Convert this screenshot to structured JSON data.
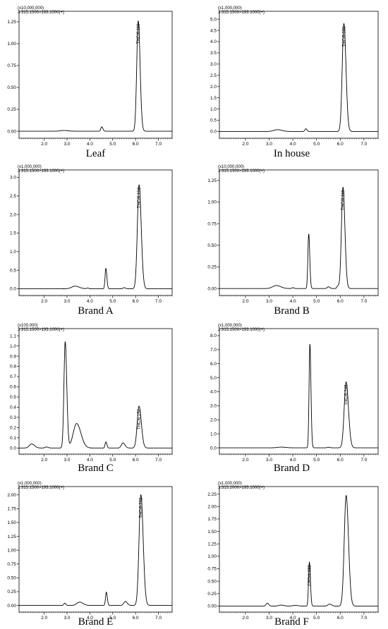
{
  "chart_data": [
    {
      "type": "line",
      "caption": "Leaf",
      "multiplier": "(x10,000,000)",
      "transition": "3:315.1500>193.1000(+)",
      "xlim": [
        0.9,
        7.6
      ],
      "ylim": [
        -0.08,
        1.37
      ],
      "x_ticks": [
        2.0,
        3.0,
        4.0,
        5.0,
        6.0,
        7.0
      ],
      "x_tick_labels": [
        "2.0",
        "3.0",
        "4.0",
        "5.0",
        "6.0",
        "7.0"
      ],
      "y_ticks": [
        0.0,
        0.25,
        0.5,
        0.75,
        1.0,
        1.25
      ],
      "y_tick_labels": [
        "0.00",
        "0.25",
        "0.50",
        "0.75",
        "1.00",
        "1.25"
      ],
      "peaks": [
        {
          "x": 2.85,
          "height": 0.008,
          "width": 0.15
        },
        {
          "x": 4.52,
          "height": 0.05,
          "width": 0.04
        },
        {
          "x": 6.116,
          "height": 1.26,
          "width": 0.065
        }
      ],
      "labels": [
        {
          "x": 6.116,
          "text": "THC/6.116"
        }
      ]
    },
    {
      "type": "line",
      "caption": "In house",
      "multiplier": "(x1,000,000)",
      "transition": "3:315.1500>193.1000(+)",
      "xlim": [
        0.9,
        7.6
      ],
      "ylim": [
        -0.3,
        5.35
      ],
      "x_ticks": [
        2.0,
        3.0,
        4.0,
        5.0,
        6.0,
        7.0
      ],
      "x_tick_labels": [
        "2.0",
        "3.0",
        "4.0",
        "5.0",
        "6.0",
        "7.0"
      ],
      "y_ticks": [
        0.0,
        0.5,
        1.0,
        1.5,
        2.0,
        2.5,
        3.0,
        3.5,
        4.0,
        4.5,
        5.0
      ],
      "y_tick_labels": [
        "0.0",
        "0.5",
        "1.0",
        "1.5",
        "2.0",
        "2.5",
        "3.0",
        "3.5",
        "4.0",
        "4.5",
        "5.0"
      ],
      "peaks": [
        {
          "x": 3.35,
          "height": 0.08,
          "width": 0.15
        },
        {
          "x": 4.55,
          "height": 0.12,
          "width": 0.04
        },
        {
          "x": 6.155,
          "height": 4.8,
          "width": 0.07
        }
      ],
      "labels": [
        {
          "x": 6.155,
          "text": "THC/6.155"
        }
      ]
    },
    {
      "type": "line",
      "caption": "Brand A",
      "multiplier": "(x1,000,000)",
      "transition": "3:315.1500>193.1000(+)",
      "xlim": [
        0.9,
        7.6
      ],
      "ylim": [
        -0.18,
        3.2
      ],
      "x_ticks": [
        2.0,
        3.0,
        4.0,
        5.0,
        6.0,
        7.0
      ],
      "x_tick_labels": [
        "2.0",
        "3.0",
        "4.0",
        "5.0",
        "6.0",
        "7.0"
      ],
      "y_ticks": [
        0.0,
        0.5,
        1.0,
        1.5,
        2.0,
        2.5,
        3.0
      ],
      "y_tick_labels": [
        "0.0",
        "0.5",
        "1.0",
        "1.5",
        "2.0",
        "2.5",
        "3.0"
      ],
      "peaks": [
        {
          "x": 3.35,
          "height": 0.07,
          "width": 0.15
        },
        {
          "x": 3.9,
          "height": 0.02,
          "width": 0.04
        },
        {
          "x": 4.7,
          "height": 0.55,
          "width": 0.035
        },
        {
          "x": 5.5,
          "height": 0.03,
          "width": 0.05
        },
        {
          "x": 6.153,
          "height": 2.8,
          "width": 0.075
        }
      ],
      "labels": [
        {
          "x": 6.153,
          "text": "THC/6.153"
        }
      ]
    },
    {
      "type": "line",
      "caption": "Brand B",
      "multiplier": "(x10,000,000)",
      "transition": "3:315.1500>193.1000(+)",
      "xlim": [
        0.9,
        7.6
      ],
      "ylim": [
        -0.08,
        1.37
      ],
      "x_ticks": [
        2.0,
        3.0,
        4.0,
        5.0,
        6.0,
        7.0
      ],
      "x_tick_labels": [
        "2.0",
        "3.0",
        "4.0",
        "5.0",
        "6.0",
        "7.0"
      ],
      "y_ticks": [
        0.0,
        0.25,
        0.5,
        0.75,
        1.0,
        1.25
      ],
      "y_tick_labels": [
        "0.00",
        "0.25",
        "0.50",
        "0.75",
        "1.00",
        "1.25"
      ],
      "peaks": [
        {
          "x": 3.3,
          "height": 0.035,
          "width": 0.15
        },
        {
          "x": 4.0,
          "height": 0.01,
          "width": 0.04
        },
        {
          "x": 4.67,
          "height": 0.63,
          "width": 0.035
        },
        {
          "x": 5.5,
          "height": 0.02,
          "width": 0.05
        },
        {
          "x": 5.9,
          "height": 0.03,
          "width": 0.04
        },
        {
          "x": 6.116,
          "height": 1.17,
          "width": 0.065
        }
      ],
      "labels": [
        {
          "x": 6.116,
          "text": "THC/6.116"
        }
      ]
    },
    {
      "type": "line",
      "caption": "Brand C",
      "multiplier": "(x100,000)",
      "transition": "3:315.1500>193.1000(+)",
      "xlim": [
        0.9,
        7.6
      ],
      "ylim": [
        -0.06,
        1.17
      ],
      "x_ticks": [
        2.0,
        3.0,
        4.0,
        5.0,
        6.0,
        7.0
      ],
      "x_tick_labels": [
        "2.0",
        "3.0",
        "4.0",
        "5.0",
        "6.0",
        "7.0"
      ],
      "y_ticks": [
        0.0,
        0.1,
        0.2,
        0.3,
        0.4,
        0.5,
        0.6,
        0.7,
        0.8,
        0.9,
        1.0,
        1.1
      ],
      "y_tick_labels": [
        "0.0",
        "0.1",
        "0.2",
        "0.3",
        "0.4",
        "0.5",
        "0.6",
        "0.7",
        "0.8",
        "0.9",
        "1.0",
        "1.1"
      ],
      "peaks": [
        {
          "x": 1.45,
          "height": 0.04,
          "width": 0.1
        },
        {
          "x": 2.1,
          "height": 0.01,
          "width": 0.06
        },
        {
          "x": 2.92,
          "height": 1.04,
          "width": 0.055
        },
        {
          "x": 3.42,
          "height": 0.24,
          "width": 0.15
        },
        {
          "x": 4.7,
          "height": 0.06,
          "width": 0.035
        },
        {
          "x": 5.45,
          "height": 0.05,
          "width": 0.07
        },
        {
          "x": 6.152,
          "height": 0.41,
          "width": 0.08
        }
      ],
      "labels": [
        {
          "x": 6.152,
          "text": "THC/6.152"
        }
      ]
    },
    {
      "type": "line",
      "caption": "Brand D",
      "multiplier": "(x1,000,000)",
      "transition": "2:315.1500>193.1000(+)",
      "xlim": [
        0.9,
        7.6
      ],
      "ylim": [
        -0.45,
        8.5
      ],
      "x_ticks": [
        2.0,
        3.0,
        4.0,
        5.0,
        6.0,
        7.0
      ],
      "x_tick_labels": [
        "2.0",
        "3.0",
        "4.0",
        "5.0",
        "6.0",
        "7.0"
      ],
      "y_ticks": [
        0.0,
        1.0,
        2.0,
        3.0,
        4.0,
        5.0,
        6.0,
        7.0,
        8.0
      ],
      "y_tick_labels": [
        "0.0",
        "1.0",
        "2.0",
        "3.0",
        "4.0",
        "5.0",
        "6.0",
        "7.0",
        "8.0"
      ],
      "peaks": [
        {
          "x": 3.5,
          "height": 0.05,
          "width": 0.15
        },
        {
          "x": 4.72,
          "height": 7.4,
          "width": 0.035
        },
        {
          "x": 5.5,
          "height": 0.04,
          "width": 0.05
        },
        {
          "x": 6.248,
          "height": 4.7,
          "width": 0.08
        }
      ],
      "labels": [
        {
          "x": 6.248,
          "text": "THC/6.248"
        }
      ]
    },
    {
      "type": "line",
      "caption": "Brand E",
      "multiplier": "(x1,000,000)",
      "transition": "2:315.1500>193.1000(+)",
      "xlim": [
        0.9,
        7.6
      ],
      "ylim": [
        -0.12,
        2.15
      ],
      "x_ticks": [
        2.0,
        3.0,
        4.0,
        5.0,
        6.0,
        7.0
      ],
      "x_tick_labels": [
        "2.0",
        "3.0",
        "4.0",
        "5.0",
        "6.0",
        "7.0"
      ],
      "y_ticks": [
        0.0,
        0.25,
        0.5,
        0.75,
        1.0,
        1.25,
        1.5,
        1.75,
        2.0
      ],
      "y_tick_labels": [
        "0.00",
        "0.25",
        "0.50",
        "0.75",
        "1.00",
        "1.25",
        "1.50",
        "1.75",
        "2.00"
      ],
      "peaks": [
        {
          "x": 2.9,
          "height": 0.04,
          "width": 0.04
        },
        {
          "x": 3.55,
          "height": 0.06,
          "width": 0.12
        },
        {
          "x": 4.72,
          "height": 0.24,
          "width": 0.035
        },
        {
          "x": 5.55,
          "height": 0.07,
          "width": 0.07
        },
        {
          "x": 6.232,
          "height": 2.0,
          "width": 0.08
        }
      ],
      "labels": [
        {
          "x": 6.232,
          "text": "THC/6.232"
        }
      ]
    },
    {
      "type": "line",
      "caption": "Brand F",
      "multiplier": "(x1,000,000)",
      "transition": "3:315.2000>193.1000(+)",
      "xlim": [
        0.9,
        7.6
      ],
      "ylim": [
        -0.12,
        2.4
      ],
      "x_ticks": [
        2.0,
        3.0,
        4.0,
        5.0,
        6.0,
        7.0
      ],
      "x_tick_labels": [
        "2.0",
        "3.0",
        "4.0",
        "5.0",
        "6.0",
        "7.0"
      ],
      "y_ticks": [
        0.0,
        0.25,
        0.5,
        0.75,
        1.0,
        1.25,
        1.5,
        1.75,
        2.0,
        2.25
      ],
      "y_tick_labels": [
        "0.00",
        "0.25",
        "0.50",
        "0.75",
        "1.00",
        "1.25",
        "1.50",
        "1.75",
        "2.00",
        "2.25"
      ],
      "peaks": [
        {
          "x": 2.92,
          "height": 0.06,
          "width": 0.05
        },
        {
          "x": 3.5,
          "height": 0.02,
          "width": 0.1
        },
        {
          "x": 4.1,
          "height": 0.015,
          "width": 0.1
        },
        {
          "x": 4.698,
          "height": 0.88,
          "width": 0.035
        },
        {
          "x": 5.55,
          "height": 0.04,
          "width": 0.07
        },
        {
          "x": 6.25,
          "height": 2.22,
          "width": 0.08
        }
      ],
      "labels": [
        {
          "x": 4.698,
          "text": "CBD/4.698"
        }
      ]
    }
  ]
}
